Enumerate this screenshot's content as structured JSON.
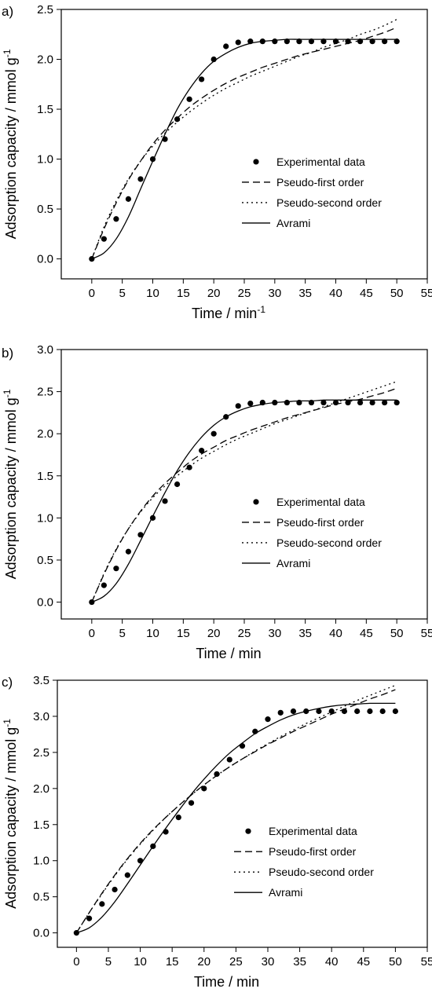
{
  "chart_data": [
    {
      "panel_label": "a)",
      "type": "line",
      "xlabel": "Time / min",
      "xlabel_sup": "-1",
      "ylabel": "Adsorption capacity / mmol g",
      "ylabel_sup": "-1",
      "xlim": [
        -5,
        55
      ],
      "ylim": [
        -0.2,
        2.5
      ],
      "xticks": [
        0,
        5,
        10,
        15,
        20,
        25,
        30,
        35,
        40,
        45,
        50,
        55
      ],
      "yticks": [
        0.0,
        0.5,
        1.0,
        1.5,
        2.0,
        2.5
      ],
      "ytick_labels": [
        "0.0",
        "0.5",
        "1.0",
        "1.5",
        "2.0",
        "2.5"
      ],
      "legend_position": "center-right",
      "series": [
        {
          "name": "Experimental data",
          "style": "points",
          "x": [
            0,
            2,
            4,
            6,
            8,
            10,
            12,
            14,
            16,
            18,
            20,
            22,
            24,
            26,
            28,
            30,
            32,
            34,
            36,
            38,
            40,
            42,
            44,
            46,
            48,
            50
          ],
          "y": [
            0.0,
            0.2,
            0.4,
            0.6,
            0.8,
            1.0,
            1.2,
            1.4,
            1.6,
            1.8,
            2.0,
            2.13,
            2.17,
            2.18,
            2.18,
            2.18,
            2.18,
            2.18,
            2.18,
            2.18,
            2.18,
            2.18,
            2.18,
            2.18,
            2.18,
            2.18
          ]
        },
        {
          "name": "Pseudo-first order",
          "style": "dash",
          "x": [
            0,
            2,
            4,
            6,
            8,
            10,
            12,
            14,
            16,
            18,
            20,
            22,
            24,
            26,
            28,
            30,
            32,
            34,
            36,
            38,
            40,
            42,
            44,
            46,
            48,
            50
          ],
          "y": [
            0.0,
            0.3,
            0.56,
            0.79,
            0.98,
            1.15,
            1.29,
            1.41,
            1.52,
            1.61,
            1.69,
            1.76,
            1.82,
            1.87,
            1.92,
            1.96,
            2.0,
            2.04,
            2.07,
            2.1,
            2.13,
            2.16,
            2.19,
            2.23,
            2.27,
            2.32
          ]
        },
        {
          "name": "Pseudo-second order",
          "style": "dot",
          "x": [
            0,
            2,
            4,
            6,
            8,
            10,
            12,
            14,
            16,
            18,
            20,
            22,
            24,
            26,
            28,
            30,
            32,
            34,
            36,
            38,
            40,
            42,
            44,
            46,
            48,
            50
          ],
          "y": [
            0.0,
            0.32,
            0.58,
            0.8,
            0.98,
            1.13,
            1.26,
            1.37,
            1.47,
            1.56,
            1.64,
            1.71,
            1.77,
            1.83,
            1.88,
            1.93,
            1.98,
            2.03,
            2.07,
            2.12,
            2.16,
            2.2,
            2.25,
            2.29,
            2.34,
            2.4
          ]
        },
        {
          "name": "Avrami",
          "style": "solid",
          "x": [
            0,
            2,
            4,
            6,
            8,
            10,
            12,
            14,
            16,
            18,
            20,
            22,
            24,
            26,
            28,
            30,
            32,
            34,
            36,
            38,
            40,
            42,
            44,
            46,
            48,
            50
          ],
          "y": [
            0.0,
            0.06,
            0.2,
            0.42,
            0.7,
            0.98,
            1.25,
            1.5,
            1.7,
            1.86,
            1.98,
            2.06,
            2.12,
            2.16,
            2.18,
            2.19,
            2.2,
            2.2,
            2.2,
            2.2,
            2.2,
            2.2,
            2.2,
            2.2,
            2.2,
            2.2
          ]
        }
      ]
    },
    {
      "panel_label": "b)",
      "type": "line",
      "xlabel": "Time / min",
      "xlabel_sup": "",
      "ylabel": "Adsorption capacity / mmol g",
      "ylabel_sup": "-1",
      "xlim": [
        -5,
        55
      ],
      "ylim": [
        -0.2,
        3.0
      ],
      "xticks": [
        0,
        5,
        10,
        15,
        20,
        25,
        30,
        35,
        40,
        45,
        50,
        55
      ],
      "yticks": [
        0.0,
        0.5,
        1.0,
        1.5,
        2.0,
        2.5,
        3.0
      ],
      "ytick_labels": [
        "0.0",
        "0.5",
        "1.0",
        "1.5",
        "2.0",
        "2.5",
        "3.0"
      ],
      "legend_position": "center-right",
      "series": [
        {
          "name": "Experimental data",
          "style": "points",
          "x": [
            0,
            2,
            4,
            6,
            8,
            10,
            12,
            14,
            16,
            18,
            20,
            22,
            24,
            26,
            28,
            30,
            32,
            34,
            36,
            38,
            40,
            42,
            44,
            46,
            48,
            50
          ],
          "y": [
            0.0,
            0.2,
            0.4,
            0.6,
            0.8,
            1.0,
            1.2,
            1.4,
            1.6,
            1.8,
            2.0,
            2.2,
            2.33,
            2.36,
            2.37,
            2.37,
            2.37,
            2.37,
            2.37,
            2.37,
            2.37,
            2.37,
            2.37,
            2.37,
            2.37,
            2.37
          ]
        },
        {
          "name": "Pseudo-first order",
          "style": "dash",
          "x": [
            0,
            2,
            4,
            6,
            8,
            10,
            12,
            14,
            16,
            18,
            20,
            22,
            24,
            26,
            28,
            30,
            32,
            34,
            36,
            38,
            40,
            42,
            44,
            46,
            48,
            50
          ],
          "y": [
            0.0,
            0.33,
            0.62,
            0.87,
            1.08,
            1.26,
            1.41,
            1.54,
            1.66,
            1.76,
            1.84,
            1.92,
            1.98,
            2.04,
            2.09,
            2.14,
            2.19,
            2.23,
            2.27,
            2.31,
            2.35,
            2.38,
            2.41,
            2.45,
            2.49,
            2.54
          ]
        },
        {
          "name": "Pseudo-second order",
          "style": "dot",
          "x": [
            0,
            2,
            4,
            6,
            8,
            10,
            12,
            14,
            16,
            18,
            20,
            22,
            24,
            26,
            28,
            30,
            32,
            34,
            36,
            38,
            40,
            42,
            44,
            46,
            48,
            50
          ],
          "y": [
            0.0,
            0.34,
            0.63,
            0.87,
            1.07,
            1.24,
            1.38,
            1.5,
            1.61,
            1.71,
            1.79,
            1.87,
            1.94,
            2.0,
            2.06,
            2.12,
            2.17,
            2.22,
            2.27,
            2.32,
            2.37,
            2.42,
            2.47,
            2.52,
            2.57,
            2.62
          ]
        },
        {
          "name": "Avrami",
          "style": "solid",
          "x": [
            0,
            2,
            4,
            6,
            8,
            10,
            12,
            14,
            16,
            18,
            20,
            22,
            24,
            26,
            28,
            30,
            32,
            34,
            36,
            38,
            40,
            42,
            44,
            46,
            48,
            50
          ],
          "y": [
            0.0,
            0.07,
            0.22,
            0.45,
            0.73,
            1.02,
            1.3,
            1.56,
            1.78,
            1.96,
            2.1,
            2.2,
            2.27,
            2.32,
            2.35,
            2.37,
            2.38,
            2.39,
            2.39,
            2.4,
            2.4,
            2.4,
            2.4,
            2.4,
            2.4,
            2.4
          ]
        }
      ]
    },
    {
      "panel_label": "c)",
      "type": "line",
      "xlabel": "Time / min",
      "xlabel_sup": "",
      "ylabel": "Adsorption capacity / mmol g",
      "ylabel_sup": "-1",
      "xlim": [
        -3,
        55
      ],
      "ylim": [
        -0.2,
        3.5
      ],
      "xticks": [
        0,
        5,
        10,
        15,
        20,
        25,
        30,
        35,
        40,
        45,
        50,
        55
      ],
      "yticks": [
        0.0,
        0.5,
        1.0,
        1.5,
        2.0,
        2.5,
        3.0,
        3.5
      ],
      "ytick_labels": [
        "0.0",
        "0.5",
        "1.0",
        "1.5",
        "2.0",
        "2.5",
        "3.0",
        "3.5"
      ],
      "legend_position": "center-right",
      "series": [
        {
          "name": "Experimental data",
          "style": "points",
          "x": [
            0,
            2,
            4,
            6,
            8,
            10,
            12,
            14,
            16,
            18,
            20,
            22,
            24,
            26,
            28,
            30,
            32,
            34,
            36,
            38,
            40,
            42,
            44,
            46,
            48,
            50
          ],
          "y": [
            0.0,
            0.2,
            0.4,
            0.6,
            0.8,
            1.0,
            1.2,
            1.4,
            1.6,
            1.8,
            2.0,
            2.2,
            2.4,
            2.59,
            2.79,
            2.96,
            3.05,
            3.07,
            3.07,
            3.07,
            3.07,
            3.07,
            3.07,
            3.07,
            3.07,
            3.07
          ]
        },
        {
          "name": "Pseudo-first order",
          "style": "dash",
          "x": [
            0,
            2,
            4,
            6,
            8,
            10,
            12,
            14,
            16,
            18,
            20,
            22,
            24,
            26,
            28,
            30,
            32,
            34,
            36,
            38,
            40,
            42,
            44,
            46,
            48,
            50
          ],
          "y": [
            0.0,
            0.28,
            0.55,
            0.8,
            1.03,
            1.24,
            1.43,
            1.6,
            1.76,
            1.91,
            2.05,
            2.18,
            2.3,
            2.41,
            2.51,
            2.61,
            2.7,
            2.79,
            2.87,
            2.95,
            3.03,
            3.1,
            3.17,
            3.24,
            3.3,
            3.37
          ]
        },
        {
          "name": "Pseudo-second order",
          "style": "dot",
          "x": [
            0,
            2,
            4,
            6,
            8,
            10,
            12,
            14,
            16,
            18,
            20,
            22,
            24,
            26,
            28,
            30,
            32,
            34,
            36,
            38,
            40,
            42,
            44,
            46,
            48,
            50
          ],
          "y": [
            0.0,
            0.28,
            0.54,
            0.79,
            1.02,
            1.23,
            1.42,
            1.6,
            1.76,
            1.91,
            2.05,
            2.18,
            2.3,
            2.41,
            2.52,
            2.62,
            2.72,
            2.81,
            2.9,
            2.98,
            3.06,
            3.14,
            3.22,
            3.29,
            3.36,
            3.43
          ]
        },
        {
          "name": "Avrami",
          "style": "solid",
          "x": [
            0,
            2,
            4,
            6,
            8,
            10,
            12,
            14,
            16,
            18,
            20,
            22,
            24,
            26,
            28,
            30,
            32,
            34,
            36,
            38,
            40,
            42,
            44,
            46,
            48,
            50
          ],
          "y": [
            0.0,
            0.07,
            0.22,
            0.43,
            0.68,
            0.94,
            1.2,
            1.45,
            1.69,
            1.92,
            2.13,
            2.32,
            2.49,
            2.63,
            2.76,
            2.86,
            2.95,
            3.02,
            3.07,
            3.11,
            3.14,
            3.16,
            3.17,
            3.18,
            3.18,
            3.18
          ]
        }
      ]
    }
  ]
}
